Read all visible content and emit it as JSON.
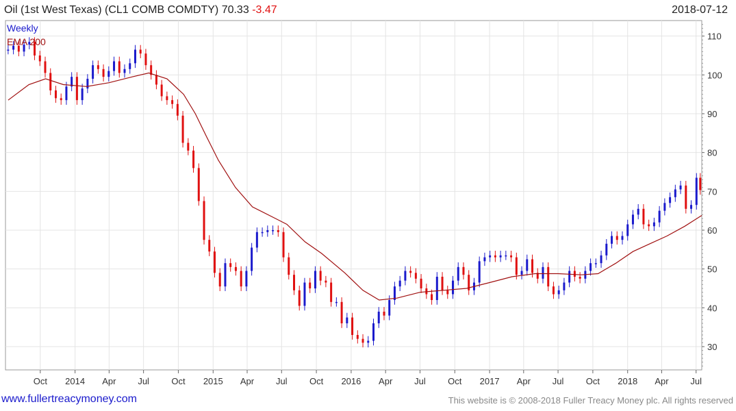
{
  "header": {
    "title": "Oil (1st West Texas) (CL1 COMB COMDTY)",
    "price": "70.33",
    "change": "-3.47",
    "date": "2018-07-12"
  },
  "footer": {
    "site": "www.fullertreacymoney.com",
    "copyright": "This website is © 2008-2018 Fuller Treacy Money plc. All rights reserved"
  },
  "colors": {
    "up": "#1a1acc",
    "down": "#e01010",
    "ema": "#a01010",
    "grid": "#e4e4e4"
  },
  "chart_data": {
    "type": "candlestick",
    "legend": [
      "Weekly",
      "EMA 200"
    ],
    "ylim": [
      24,
      114
    ],
    "yticks": [
      30,
      40,
      50,
      60,
      70,
      80,
      90,
      100,
      110
    ],
    "x_range": [
      "2013-07-01",
      "2018-07-16"
    ],
    "xticks": [
      {
        "label": "Oct",
        "date": "2013-10-01"
      },
      {
        "label": "2014",
        "date": "2014-01-01"
      },
      {
        "label": "Apr",
        "date": "2014-04-01"
      },
      {
        "label": "Jul",
        "date": "2014-07-01"
      },
      {
        "label": "Oct",
        "date": "2014-10-01"
      },
      {
        "label": "2015",
        "date": "2015-01-01"
      },
      {
        "label": "Apr",
        "date": "2015-04-01"
      },
      {
        "label": "Jul",
        "date": "2015-07-01"
      },
      {
        "label": "Oct",
        "date": "2015-10-01"
      },
      {
        "label": "2016",
        "date": "2016-01-01"
      },
      {
        "label": "Apr",
        "date": "2016-04-01"
      },
      {
        "label": "Jul",
        "date": "2016-07-01"
      },
      {
        "label": "Oct",
        "date": "2016-10-01"
      },
      {
        "label": "2017",
        "date": "2017-01-01"
      },
      {
        "label": "Apr",
        "date": "2017-04-01"
      },
      {
        "label": "Jul",
        "date": "2017-07-01"
      },
      {
        "label": "Oct",
        "date": "2017-10-01"
      },
      {
        "label": "2018",
        "date": "2018-01-01"
      },
      {
        "label": "Apr",
        "date": "2018-04-01"
      },
      {
        "label": "Jul",
        "date": "2018-07-01"
      }
    ],
    "series": [
      {
        "name": "Weekly",
        "columns": [
          "date",
          "close"
        ],
        "values": [
          [
            "2013-07-08",
            106.5
          ],
          [
            "2013-07-22",
            107.5
          ],
          [
            "2013-08-05",
            106.0
          ],
          [
            "2013-08-19",
            107.8
          ],
          [
            "2013-09-02",
            108.5
          ],
          [
            "2013-09-16",
            105.0
          ],
          [
            "2013-09-30",
            103.5
          ],
          [
            "2013-10-14",
            100.5
          ],
          [
            "2013-10-28",
            96.0
          ],
          [
            "2013-11-11",
            94.0
          ],
          [
            "2013-11-25",
            93.5
          ],
          [
            "2013-12-09",
            97.0
          ],
          [
            "2013-12-23",
            99.5
          ],
          [
            "2014-01-06",
            93.5
          ],
          [
            "2014-01-20",
            96.5
          ],
          [
            "2014-02-03",
            99.0
          ],
          [
            "2014-02-17",
            102.5
          ],
          [
            "2014-03-03",
            101.5
          ],
          [
            "2014-03-17",
            99.5
          ],
          [
            "2014-03-31",
            101.0
          ],
          [
            "2014-04-14",
            103.5
          ],
          [
            "2014-04-28",
            100.5
          ],
          [
            "2014-05-12",
            101.5
          ],
          [
            "2014-05-26",
            103.0
          ],
          [
            "2014-06-09",
            106.5
          ],
          [
            "2014-06-23",
            105.5
          ],
          [
            "2014-07-07",
            102.5
          ],
          [
            "2014-07-21",
            100.0
          ],
          [
            "2014-08-04",
            97.5
          ],
          [
            "2014-08-18",
            94.5
          ],
          [
            "2014-09-01",
            93.5
          ],
          [
            "2014-09-15",
            92.5
          ],
          [
            "2014-09-29",
            89.5
          ],
          [
            "2014-10-13",
            82.5
          ],
          [
            "2014-10-27",
            80.5
          ],
          [
            "2014-11-10",
            76.0
          ],
          [
            "2014-11-24",
            67.5
          ],
          [
            "2014-12-08",
            57.5
          ],
          [
            "2014-12-22",
            54.5
          ],
          [
            "2015-01-05",
            49.0
          ],
          [
            "2015-01-19",
            45.5
          ],
          [
            "2015-02-02",
            51.5
          ],
          [
            "2015-02-16",
            50.5
          ],
          [
            "2015-03-02",
            49.5
          ],
          [
            "2015-03-16",
            45.5
          ],
          [
            "2015-03-30",
            49.5
          ],
          [
            "2015-04-13",
            55.5
          ],
          [
            "2015-04-27",
            59.5
          ],
          [
            "2015-05-11",
            59.5
          ],
          [
            "2015-05-25",
            60.0
          ],
          [
            "2015-06-08",
            60.0
          ],
          [
            "2015-06-22",
            59.5
          ],
          [
            "2015-07-06",
            53.0
          ],
          [
            "2015-07-20",
            48.5
          ],
          [
            "2015-08-03",
            44.5
          ],
          [
            "2015-08-17",
            40.5
          ],
          [
            "2015-08-31",
            46.5
          ],
          [
            "2015-09-14",
            45.0
          ],
          [
            "2015-09-28",
            49.5
          ],
          [
            "2015-10-12",
            47.0
          ],
          [
            "2015-10-26",
            46.5
          ],
          [
            "2015-11-09",
            41.5
          ],
          [
            "2015-11-23",
            41.5
          ],
          [
            "2015-12-07",
            36.0
          ],
          [
            "2015-12-21",
            37.5
          ],
          [
            "2016-01-04",
            33.0
          ],
          [
            "2016-01-18",
            32.0
          ],
          [
            "2016-02-01",
            31.0
          ],
          [
            "2016-02-15",
            31.5
          ],
          [
            "2016-02-29",
            36.0
          ],
          [
            "2016-03-14",
            39.0
          ],
          [
            "2016-03-28",
            38.0
          ],
          [
            "2016-04-11",
            42.0
          ],
          [
            "2016-04-25",
            45.5
          ],
          [
            "2016-05-09",
            47.0
          ],
          [
            "2016-05-23",
            49.5
          ],
          [
            "2016-06-06",
            49.0
          ],
          [
            "2016-06-20",
            47.5
          ],
          [
            "2016-07-04",
            45.0
          ],
          [
            "2016-07-18",
            43.5
          ],
          [
            "2016-08-01",
            42.0
          ],
          [
            "2016-08-15",
            48.0
          ],
          [
            "2016-08-29",
            44.5
          ],
          [
            "2016-09-12",
            43.5
          ],
          [
            "2016-09-26",
            47.0
          ],
          [
            "2016-10-10",
            50.5
          ],
          [
            "2016-10-24",
            48.5
          ],
          [
            "2016-11-07",
            44.5
          ],
          [
            "2016-11-21",
            46.5
          ],
          [
            "2016-12-05",
            52.0
          ],
          [
            "2016-12-19",
            53.0
          ],
          [
            "2017-01-02",
            53.5
          ],
          [
            "2017-01-16",
            53.0
          ],
          [
            "2017-01-30",
            53.5
          ],
          [
            "2017-02-13",
            53.5
          ],
          [
            "2017-02-27",
            53.0
          ],
          [
            "2017-03-13",
            48.5
          ],
          [
            "2017-03-27",
            49.5
          ],
          [
            "2017-04-10",
            52.5
          ],
          [
            "2017-04-24",
            49.0
          ],
          [
            "2017-05-08",
            47.5
          ],
          [
            "2017-05-22",
            50.5
          ],
          [
            "2017-06-05",
            45.5
          ],
          [
            "2017-06-19",
            43.5
          ],
          [
            "2017-07-03",
            44.5
          ],
          [
            "2017-07-17",
            46.5
          ],
          [
            "2017-07-31",
            49.5
          ],
          [
            "2017-08-14",
            48.0
          ],
          [
            "2017-08-28",
            47.5
          ],
          [
            "2017-09-11",
            49.5
          ],
          [
            "2017-09-25",
            51.5
          ],
          [
            "2017-10-09",
            51.5
          ],
          [
            "2017-10-23",
            53.5
          ],
          [
            "2017-11-06",
            56.5
          ],
          [
            "2017-11-20",
            58.5
          ],
          [
            "2017-12-04",
            57.5
          ],
          [
            "2017-12-18",
            58.5
          ],
          [
            "2018-01-01",
            61.5
          ],
          [
            "2018-01-15",
            64.0
          ],
          [
            "2018-01-29",
            65.5
          ],
          [
            "2018-02-12",
            61.5
          ],
          [
            "2018-02-26",
            61.0
          ],
          [
            "2018-03-12",
            62.0
          ],
          [
            "2018-03-26",
            65.0
          ],
          [
            "2018-04-09",
            67.0
          ],
          [
            "2018-04-23",
            68.5
          ],
          [
            "2018-05-07",
            70.5
          ],
          [
            "2018-05-21",
            71.5
          ],
          [
            "2018-06-04",
            65.5
          ],
          [
            "2018-06-18",
            66.5
          ],
          [
            "2018-07-02",
            73.5
          ],
          [
            "2018-07-12",
            70.33
          ]
        ]
      },
      {
        "name": "EMA 200",
        "columns": [
          "date",
          "value"
        ],
        "values": [
          [
            "2013-07-08",
            93.5
          ],
          [
            "2013-09-01",
            97.5
          ],
          [
            "2013-10-15",
            99.0
          ],
          [
            "2013-12-01",
            97.5
          ],
          [
            "2014-02-01",
            97.0
          ],
          [
            "2014-04-01",
            98.0
          ],
          [
            "2014-06-01",
            99.5
          ],
          [
            "2014-07-15",
            100.5
          ],
          [
            "2014-09-01",
            99.0
          ],
          [
            "2014-10-15",
            95.0
          ],
          [
            "2014-11-15",
            90.0
          ],
          [
            "2014-12-15",
            84.0
          ],
          [
            "2015-01-15",
            78.0
          ],
          [
            "2015-03-01",
            71.0
          ],
          [
            "2015-04-15",
            66.0
          ],
          [
            "2015-06-15",
            63.0
          ],
          [
            "2015-07-15",
            61.5
          ],
          [
            "2015-09-01",
            57.0
          ],
          [
            "2015-10-15",
            54.0
          ],
          [
            "2015-12-15",
            49.0
          ],
          [
            "2016-02-01",
            44.5
          ],
          [
            "2016-03-15",
            42.0
          ],
          [
            "2016-05-01",
            42.5
          ],
          [
            "2016-07-01",
            44.0
          ],
          [
            "2016-09-01",
            44.5
          ],
          [
            "2016-11-01",
            45.0
          ],
          [
            "2017-01-01",
            46.5
          ],
          [
            "2017-03-01",
            48.0
          ],
          [
            "2017-05-01",
            48.8
          ],
          [
            "2017-07-01",
            48.8
          ],
          [
            "2017-09-01",
            48.5
          ],
          [
            "2017-10-15",
            48.8
          ],
          [
            "2017-12-01",
            51.5
          ],
          [
            "2018-01-15",
            54.5
          ],
          [
            "2018-03-01",
            56.5
          ],
          [
            "2018-04-15",
            58.5
          ],
          [
            "2018-06-01",
            61.0
          ],
          [
            "2018-07-16",
            63.8
          ]
        ]
      }
    ]
  }
}
